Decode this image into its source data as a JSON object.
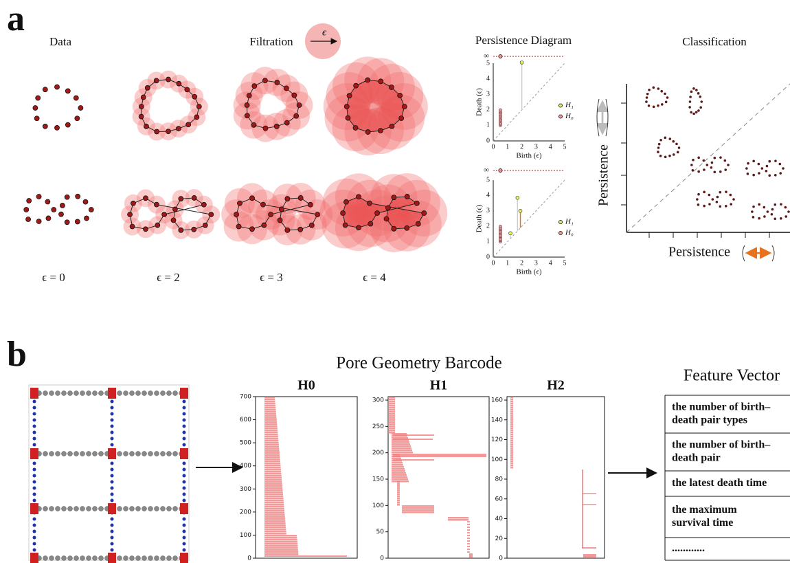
{
  "panel_a": {
    "label": "a",
    "data_title": "Data",
    "filtration_title": "Filtration",
    "epsilon_symbol": "ϵ",
    "pd_title": "Persistence Diagram",
    "class_title": "Classification",
    "epsilon_labels": [
      "ϵ = 0",
      "ϵ = 2",
      "ϵ = 3",
      "ϵ = 4"
    ],
    "pd": {
      "y_label": "Death (ϵ)",
      "x_label": "Birth (ϵ)",
      "ticks": [
        0,
        1,
        2,
        3,
        4,
        5
      ],
      "infinity": "∞",
      "legend": [
        "H₁",
        "H₀"
      ]
    },
    "class_y_label": "Persistence",
    "class_x_label": "Persistence"
  },
  "panel_b": {
    "label": "b",
    "barcode_title": "Pore Geometry Barcode",
    "plots": [
      {
        "title": "H0",
        "yticks": [
          0,
          100,
          200,
          300,
          400,
          500,
          600,
          700
        ]
      },
      {
        "title": "H1",
        "yticks": [
          0,
          50,
          100,
          150,
          200,
          250,
          300
        ]
      },
      {
        "title": "H2",
        "yticks": [
          0,
          20,
          40,
          60,
          80,
          100,
          120,
          140,
          160
        ]
      }
    ],
    "feature_title": "Feature Vector",
    "feature_rows": [
      [
        "the number  of birth–",
        "death pair types"
      ],
      [
        "the number  of birth–",
        "death pair"
      ],
      [
        "the latest death time"
      ],
      [
        "the maximum",
        "survival time"
      ],
      [
        "............"
      ]
    ]
  }
}
